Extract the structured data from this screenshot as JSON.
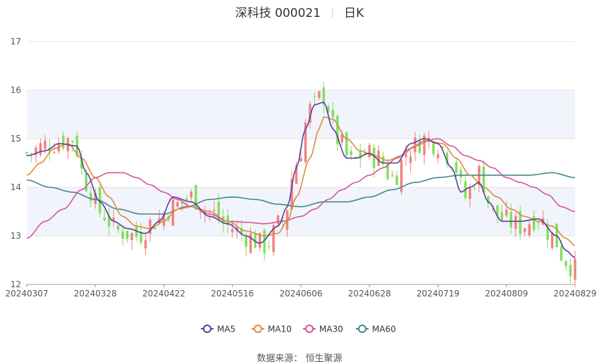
{
  "title": {
    "stock": "深科技 000021",
    "period": "日K"
  },
  "source": {
    "label": "数据来源：",
    "provider": "恒生聚源"
  },
  "colors": {
    "up": "#f08080",
    "down": "#7ee05a",
    "ma5": "#5b3f99",
    "ma10": "#d98c3c",
    "ma30": "#d4559a",
    "ma60": "#3d8a8a",
    "band": "#f2f4fb",
    "grid": "#e4e4e4"
  },
  "chart_data": {
    "type": "candlestick",
    "ylim": [
      12,
      17
    ],
    "yticks": [
      12,
      13,
      14,
      15,
      16,
      17
    ],
    "x_labels": [
      "20240307",
      "20240328",
      "20240422",
      "20240516",
      "20240606",
      "20240628",
      "20240719",
      "20240809",
      "20240829"
    ],
    "legend": [
      "MA5",
      "MA10",
      "MA30",
      "MA60"
    ],
    "legend_position": "bottom-center",
    "close_anchors": [
      [
        0,
        14.7
      ],
      [
        5,
        14.9
      ],
      [
        10,
        15.0
      ],
      [
        13,
        14.1
      ],
      [
        16,
        13.5
      ],
      [
        20,
        13.1
      ],
      [
        24,
        13.0
      ],
      [
        28,
        13.3
      ],
      [
        32,
        13.6
      ],
      [
        36,
        13.8
      ],
      [
        40,
        13.5
      ],
      [
        44,
        13.2
      ],
      [
        48,
        13.0
      ],
      [
        52,
        12.8
      ],
      [
        56,
        13.3
      ],
      [
        59,
        14.5
      ],
      [
        62,
        15.6
      ],
      [
        65,
        15.9
      ],
      [
        68,
        15.0
      ],
      [
        71,
        14.5
      ],
      [
        74,
        14.7
      ],
      [
        77,
        14.6
      ],
      [
        80,
        14.2
      ],
      [
        84,
        14.8
      ],
      [
        87,
        15.0
      ],
      [
        90,
        14.9
      ],
      [
        93,
        14.6
      ],
      [
        96,
        13.8
      ],
      [
        99,
        14.3
      ],
      [
        102,
        13.5
      ],
      [
        105,
        13.3
      ],
      [
        108,
        13.2
      ],
      [
        112,
        13.4
      ],
      [
        115,
        13.0
      ],
      [
        118,
        12.5
      ],
      [
        120,
        12.3
      ]
    ],
    "ma_anchors": {
      "MA5": [
        [
          0,
          14.65
        ],
        [
          4,
          14.75
        ],
        [
          7,
          14.9
        ],
        [
          11,
          14.85
        ],
        [
          13,
          14.3
        ],
        [
          16,
          13.7
        ],
        [
          19,
          13.3
        ],
        [
          22,
          13.15
        ],
        [
          26,
          13.05
        ],
        [
          29,
          13.3
        ],
        [
          32,
          13.8
        ],
        [
          36,
          13.7
        ],
        [
          40,
          13.4
        ],
        [
          44,
          13.25
        ],
        [
          48,
          13.0
        ],
        [
          51,
          12.85
        ],
        [
          55,
          13.2
        ],
        [
          57,
          13.6
        ],
        [
          59,
          14.4
        ],
        [
          61,
          15.2
        ],
        [
          63,
          15.7
        ],
        [
          65,
          15.75
        ],
        [
          67,
          15.2
        ],
        [
          70,
          14.6
        ],
        [
          72,
          14.6
        ],
        [
          75,
          14.7
        ],
        [
          78,
          14.5
        ],
        [
          81,
          14.5
        ],
        [
          84,
          14.9
        ],
        [
          87,
          15.0
        ],
        [
          90,
          14.9
        ],
        [
          93,
          14.4
        ],
        [
          95,
          13.9
        ],
        [
          97,
          14.0
        ],
        [
          99,
          14.1
        ],
        [
          101,
          13.7
        ],
        [
          104,
          13.3
        ],
        [
          108,
          13.3
        ],
        [
          112,
          13.35
        ],
        [
          116,
          13.0
        ],
        [
          118,
          12.7
        ],
        [
          120,
          12.55
        ]
      ],
      "MA10": [
        [
          0,
          14.25
        ],
        [
          3,
          14.5
        ],
        [
          6,
          14.8
        ],
        [
          9,
          14.9
        ],
        [
          12,
          14.6
        ],
        [
          15,
          14.2
        ],
        [
          18,
          13.8
        ],
        [
          21,
          13.4
        ],
        [
          24,
          13.2
        ],
        [
          27,
          13.15
        ],
        [
          30,
          13.3
        ],
        [
          33,
          13.55
        ],
        [
          36,
          13.6
        ],
        [
          40,
          13.5
        ],
        [
          44,
          13.3
        ],
        [
          48,
          13.1
        ],
        [
          52,
          13.0
        ],
        [
          55,
          13.05
        ],
        [
          57,
          13.3
        ],
        [
          59,
          13.8
        ],
        [
          62,
          14.6
        ],
        [
          64,
          15.2
        ],
        [
          65,
          15.45
        ],
        [
          67,
          15.4
        ],
        [
          70,
          15.0
        ],
        [
          73,
          14.75
        ],
        [
          76,
          14.65
        ],
        [
          79,
          14.55
        ],
        [
          82,
          14.65
        ],
        [
          85,
          14.85
        ],
        [
          88,
          14.95
        ],
        [
          91,
          14.9
        ],
        [
          94,
          14.6
        ],
        [
          97,
          14.25
        ],
        [
          100,
          14.0
        ],
        [
          103,
          13.8
        ],
        [
          106,
          13.55
        ],
        [
          109,
          13.4
        ],
        [
          112,
          13.3
        ],
        [
          115,
          13.2
        ],
        [
          118,
          12.95
        ],
        [
          120,
          12.8
        ]
      ],
      "MA30": [
        [
          0,
          12.95
        ],
        [
          4,
          13.3
        ],
        [
          8,
          13.55
        ],
        [
          12,
          13.95
        ],
        [
          15,
          14.2
        ],
        [
          18,
          14.3
        ],
        [
          21,
          14.3
        ],
        [
          24,
          14.2
        ],
        [
          27,
          14.05
        ],
        [
          30,
          13.9
        ],
        [
          33,
          13.75
        ],
        [
          36,
          13.6
        ],
        [
          40,
          13.45
        ],
        [
          44,
          13.3
        ],
        [
          48,
          13.28
        ],
        [
          52,
          13.25
        ],
        [
          56,
          13.3
        ],
        [
          60,
          13.4
        ],
        [
          63,
          13.55
        ],
        [
          66,
          13.75
        ],
        [
          69,
          13.95
        ],
        [
          72,
          14.1
        ],
        [
          75,
          14.25
        ],
        [
          78,
          14.4
        ],
        [
          81,
          14.6
        ],
        [
          84,
          14.8
        ],
        [
          87,
          14.95
        ],
        [
          90,
          15.0
        ],
        [
          93,
          14.85
        ],
        [
          96,
          14.65
        ],
        [
          99,
          14.55
        ],
        [
          102,
          14.4
        ],
        [
          105,
          14.2
        ],
        [
          108,
          14.1
        ],
        [
          111,
          14.0
        ],
        [
          114,
          13.85
        ],
        [
          117,
          13.6
        ],
        [
          120,
          13.5
        ]
      ],
      "MA60": [
        [
          0,
          14.15
        ],
        [
          5,
          14.0
        ],
        [
          10,
          13.9
        ],
        [
          15,
          13.75
        ],
        [
          20,
          13.55
        ],
        [
          25,
          13.45
        ],
        [
          30,
          13.45
        ],
        [
          35,
          13.6
        ],
        [
          40,
          13.75
        ],
        [
          45,
          13.8
        ],
        [
          50,
          13.75
        ],
        [
          55,
          13.65
        ],
        [
          60,
          13.6
        ],
        [
          65,
          13.7
        ],
        [
          70,
          13.7
        ],
        [
          75,
          13.8
        ],
        [
          80,
          13.95
        ],
        [
          85,
          14.1
        ],
        [
          90,
          14.2
        ],
        [
          95,
          14.25
        ],
        [
          100,
          14.25
        ],
        [
          105,
          14.25
        ],
        [
          110,
          14.25
        ],
        [
          115,
          14.3
        ],
        [
          120,
          14.2
        ]
      ]
    }
  }
}
